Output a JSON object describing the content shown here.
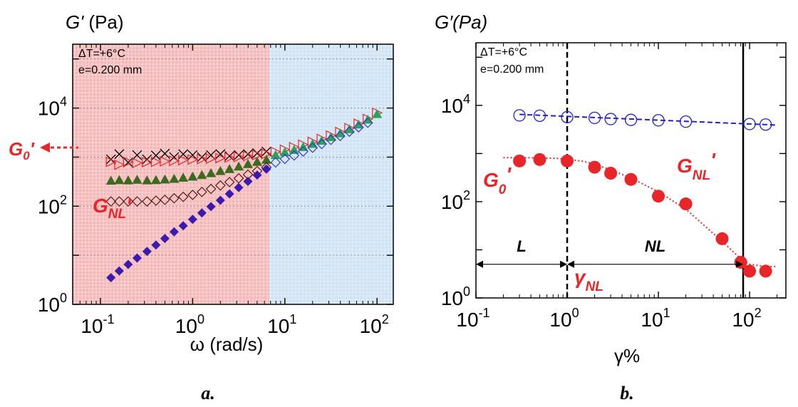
{
  "chart_data": [
    {
      "type": "scatter",
      "panel_label": "a.",
      "ylabel": "G' (Pa)",
      "xlabel": "ω (rad/s)",
      "xscale": "log",
      "yscale": "log",
      "xlim": [
        0.05,
        150
      ],
      "ylim": [
        1,
        200000
      ],
      "xticks": [
        {
          "value": 0.1,
          "base": "10",
          "exp": "-1"
        },
        {
          "value": 1,
          "base": "10",
          "exp": "0"
        },
        {
          "value": 10,
          "base": "10",
          "exp": "1"
        },
        {
          "value": 100,
          "base": "10",
          "exp": "2"
        }
      ],
      "yticks": [
        {
          "value": 1,
          "base": "10",
          "exp": "0"
        },
        {
          "value": 100,
          "base": "10",
          "exp": "2"
        },
        {
          "value": 10000,
          "base": "10",
          "exp": "4"
        }
      ],
      "grid": true,
      "regions": [
        {
          "x_from": 0.05,
          "x_to": 6.8,
          "color": "#f4b8b8"
        },
        {
          "x_from": 6.8,
          "x_to": 150,
          "color": "#cfe3f5"
        }
      ],
      "info_lines": [
        "ΔT=+6°C",
        "e=0.200 mm"
      ],
      "annotations": [
        {
          "main": "G",
          "sub": "0",
          "prime": "'",
          "color": "#e8262a",
          "arrow": "to-axis-left"
        },
        {
          "main": "G",
          "sub": "NL",
          "prime": "'",
          "color": "#e8262a"
        }
      ],
      "series": [
        {
          "marker": "cross",
          "color": "#000000",
          "x": [
            0.13,
            0.16,
            0.2,
            0.25,
            0.32,
            0.4,
            0.5,
            0.63,
            0.79,
            1.0,
            1.26,
            1.58,
            2.0,
            2.51,
            3.16,
            3.98,
            5.01,
            6.31
          ],
          "y": [
            900,
            1150,
            780,
            1100,
            900,
            1080,
            1180,
            1000,
            1150,
            1100,
            1000,
            1100,
            1150,
            1050,
            1100,
            1150,
            1200,
            1300
          ]
        },
        {
          "marker": "triangle-right-open",
          "color": "#e8262a",
          "x": [
            0.13,
            0.16,
            0.2,
            0.25,
            0.32,
            0.4,
            0.5,
            0.63,
            0.79,
            1.0,
            1.26,
            1.58,
            2.0,
            2.51,
            3.16,
            3.98,
            5.01,
            6.31,
            7.94,
            10,
            12.6,
            15.8,
            20,
            25.1,
            31.6,
            39.8,
            50.1,
            63.1,
            79.4,
            100
          ],
          "y": [
            800,
            700,
            800,
            760,
            790,
            800,
            820,
            840,
            870,
            890,
            910,
            930,
            950,
            980,
            1010,
            1050,
            1100,
            1160,
            1280,
            1420,
            1600,
            1800,
            2050,
            2350,
            2750,
            3250,
            3900,
            4800,
            6000,
            8000
          ]
        },
        {
          "marker": "triangle-filled",
          "color": "#3a6b1f",
          "x": [
            0.13,
            0.16,
            0.2,
            0.25,
            0.32,
            0.4,
            0.5,
            0.63,
            0.79,
            1.0,
            1.26,
            1.58,
            2.0,
            2.51,
            3.16,
            3.98,
            5.01,
            6.31
          ],
          "y": [
            330,
            340,
            335,
            345,
            335,
            340,
            350,
            360,
            380,
            400,
            430,
            470,
            520,
            570,
            640,
            720,
            800,
            880
          ]
        },
        {
          "marker": "triangle-filled",
          "color": "#2aa35a",
          "x": [
            7.94,
            10,
            12.6,
            15.8,
            20,
            25.1,
            31.6,
            39.8,
            50.1,
            63.1,
            79.4,
            100
          ],
          "y": [
            1100,
            1250,
            1400,
            1600,
            1850,
            2150,
            2550,
            3050,
            3700,
            4600,
            5800,
            7500
          ]
        },
        {
          "marker": "diamond-open",
          "color": "#5a1a1a",
          "x": [
            0.13,
            0.16,
            0.2,
            0.25,
            0.32,
            0.4,
            0.5,
            0.63,
            0.79,
            1.0,
            1.26,
            1.58,
            2.0,
            2.51,
            3.16,
            3.98,
            5.01,
            6.31
          ],
          "y": [
            125,
            125,
            125,
            125,
            125,
            130,
            135,
            145,
            155,
            170,
            195,
            225,
            265,
            310,
            370,
            440,
            520,
            620
          ]
        },
        {
          "marker": "diamond-open",
          "color": "#3a3acb",
          "x": [
            7.94,
            10,
            12.6,
            15.8,
            20,
            25.1,
            31.6,
            39.8,
            50.1,
            63.1,
            79.4
          ],
          "y": [
            780,
            920,
            1080,
            1300,
            1550,
            1850,
            2250,
            2700,
            3300,
            4050,
            5000
          ]
        },
        {
          "marker": "diamond-filled",
          "color": "#3a1ab0",
          "x": [
            0.13,
            0.16,
            0.2,
            0.25,
            0.32,
            0.4,
            0.5,
            0.63,
            0.79,
            1.0,
            1.26,
            1.58,
            2.0,
            2.51,
            3.16,
            3.98,
            5.01,
            6.31
          ],
          "y": [
            3.5,
            4.8,
            6.5,
            8.8,
            12,
            16.2,
            22,
            30,
            40,
            54,
            73,
            98,
            132,
            178,
            240,
            320,
            430,
            570
          ]
        }
      ]
    },
    {
      "type": "scatter",
      "panel_label": "b.",
      "ylabel": "G′(Pa)",
      "xlabel": "γ%",
      "xscale": "log",
      "yscale": "log",
      "xlim": [
        0.1,
        250
      ],
      "ylim": [
        1,
        200000
      ],
      "xticks": [
        {
          "value": 0.1,
          "base": "10",
          "exp": "-1"
        },
        {
          "value": 1,
          "base": "10",
          "exp": "0"
        },
        {
          "value": 10,
          "base": "10",
          "exp": "1"
        },
        {
          "value": 100,
          "base": "10",
          "exp": "2"
        }
      ],
      "yticks": [
        {
          "value": 1,
          "base": "10",
          "exp": "0"
        },
        {
          "value": 100,
          "base": "10",
          "exp": "2"
        },
        {
          "value": 10000,
          "base": "10",
          "exp": "4"
        }
      ],
      "grid": false,
      "info_lines": [
        "ΔT=+6°C",
        "e=0.200 mm"
      ],
      "vlines": [
        {
          "x": 1.0,
          "style": "dashed"
        },
        {
          "x": 85,
          "style": "solid"
        }
      ],
      "regions_text": [
        {
          "label": "L",
          "x_from": 0.1,
          "x_to": 1.0,
          "y": 5
        },
        {
          "label": "NL",
          "x_from": 1.0,
          "x_to": 85,
          "y": 5
        }
      ],
      "annotations": [
        {
          "main": "G",
          "sub": "0",
          "prime": "'",
          "color": "#e8262a"
        },
        {
          "main": "G",
          "sub": "NL",
          "prime": "'",
          "color": "#e8262a"
        },
        {
          "main": "γ",
          "sub": "NL",
          "prime": "",
          "color": "#e8262a"
        }
      ],
      "series": [
        {
          "marker": "circle-open",
          "color": "#2020cc",
          "x": [
            0.3,
            0.5,
            1.0,
            2.0,
            3.0,
            5.0,
            10,
            20,
            100,
            150
          ],
          "y": [
            6200,
            6100,
            5700,
            5500,
            5200,
            5000,
            4900,
            4600,
            4100,
            4000
          ],
          "fit": {
            "x": [
              0.3,
              200
            ],
            "y": [
              6500,
              3900
            ],
            "style": "dashed"
          }
        },
        {
          "marker": "circle-filled",
          "color": "#e8262a",
          "x": [
            0.3,
            0.5,
            1.0,
            2.0,
            3.0,
            5.0,
            10,
            20,
            50,
            80,
            100,
            150
          ],
          "y": [
            700,
            750,
            700,
            520,
            390,
            290,
            130,
            90,
            17,
            5.5,
            3.6,
            3.6
          ],
          "fit": {
            "x": [
              0.2,
              0.3,
              0.5,
              0.8,
              1.0,
              1.5,
              2.0,
              3.0,
              5.0,
              10,
              20,
              50,
              80,
              100,
              150,
              200
            ],
            "y": [
              820,
              820,
              810,
              790,
              760,
              690,
              600,
              460,
              310,
              160,
              70,
              15,
              6.5,
              5.0,
              4.5,
              4.5
            ],
            "style": "dotted"
          }
        }
      ]
    }
  ]
}
